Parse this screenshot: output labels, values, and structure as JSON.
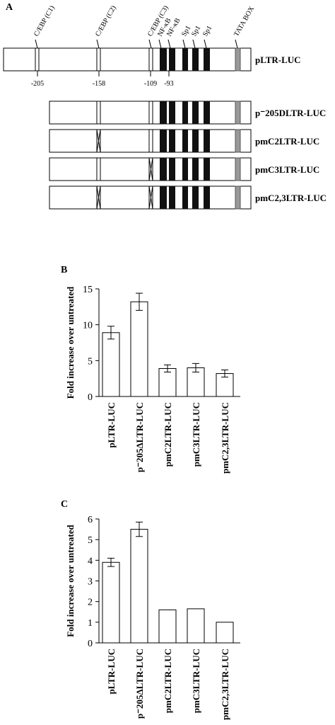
{
  "diagram": {
    "panel": "A",
    "sites": [
      "C/EBP (C1)",
      "C/EBP (C2)",
      "C/EBP (C3)",
      "NF-κB",
      "NF-κB",
      "Sp1",
      "Sp1",
      "Sp1",
      "TATA BOX"
    ],
    "positions": [
      "-205",
      "-158",
      "-109",
      "-93"
    ],
    "constructs": [
      "pLTR-LUC",
      "p⁻205DLTR-LUC",
      "pmC2LTR-LUC",
      "pmC3LTR-LUC",
      "pmC2,3LTR-LUC"
    ]
  },
  "chart_data": [
    {
      "type": "bar",
      "panel": "B",
      "ylabel": "Fold increase over untreated",
      "categories": [
        "pLTR-LUC",
        "p⁻205ΔLTR-LUC",
        "pmC2LTR-LUC",
        "pmC3LTR-LUC",
        "pmC2,3LTR-LUC"
      ],
      "values": [
        8.9,
        13.2,
        3.9,
        4.0,
        3.2
      ],
      "errors": [
        0.9,
        1.2,
        0.5,
        0.6,
        0.5
      ],
      "color": "#ffffff",
      "ylim": [
        0,
        15
      ],
      "yticks": [
        0,
        5,
        10,
        15
      ]
    },
    {
      "type": "bar",
      "panel": "C",
      "ylabel": "Fold increase over untreated",
      "categories": [
        "pLTR-LUC",
        "p⁻205ΔLTR-LUC",
        "pmC2LTR-LUC",
        "pmC3LTR-LUC",
        "pmC2,3LTR-LUC"
      ],
      "values": [
        3.9,
        5.5,
        1.6,
        1.65,
        1.0
      ],
      "errors": [
        0.2,
        0.35,
        null,
        null,
        null
      ],
      "color": "#ffffff",
      "ylim": [
        0,
        6
      ],
      "yticks": [
        0,
        1,
        2,
        3,
        4,
        5,
        6
      ]
    }
  ]
}
